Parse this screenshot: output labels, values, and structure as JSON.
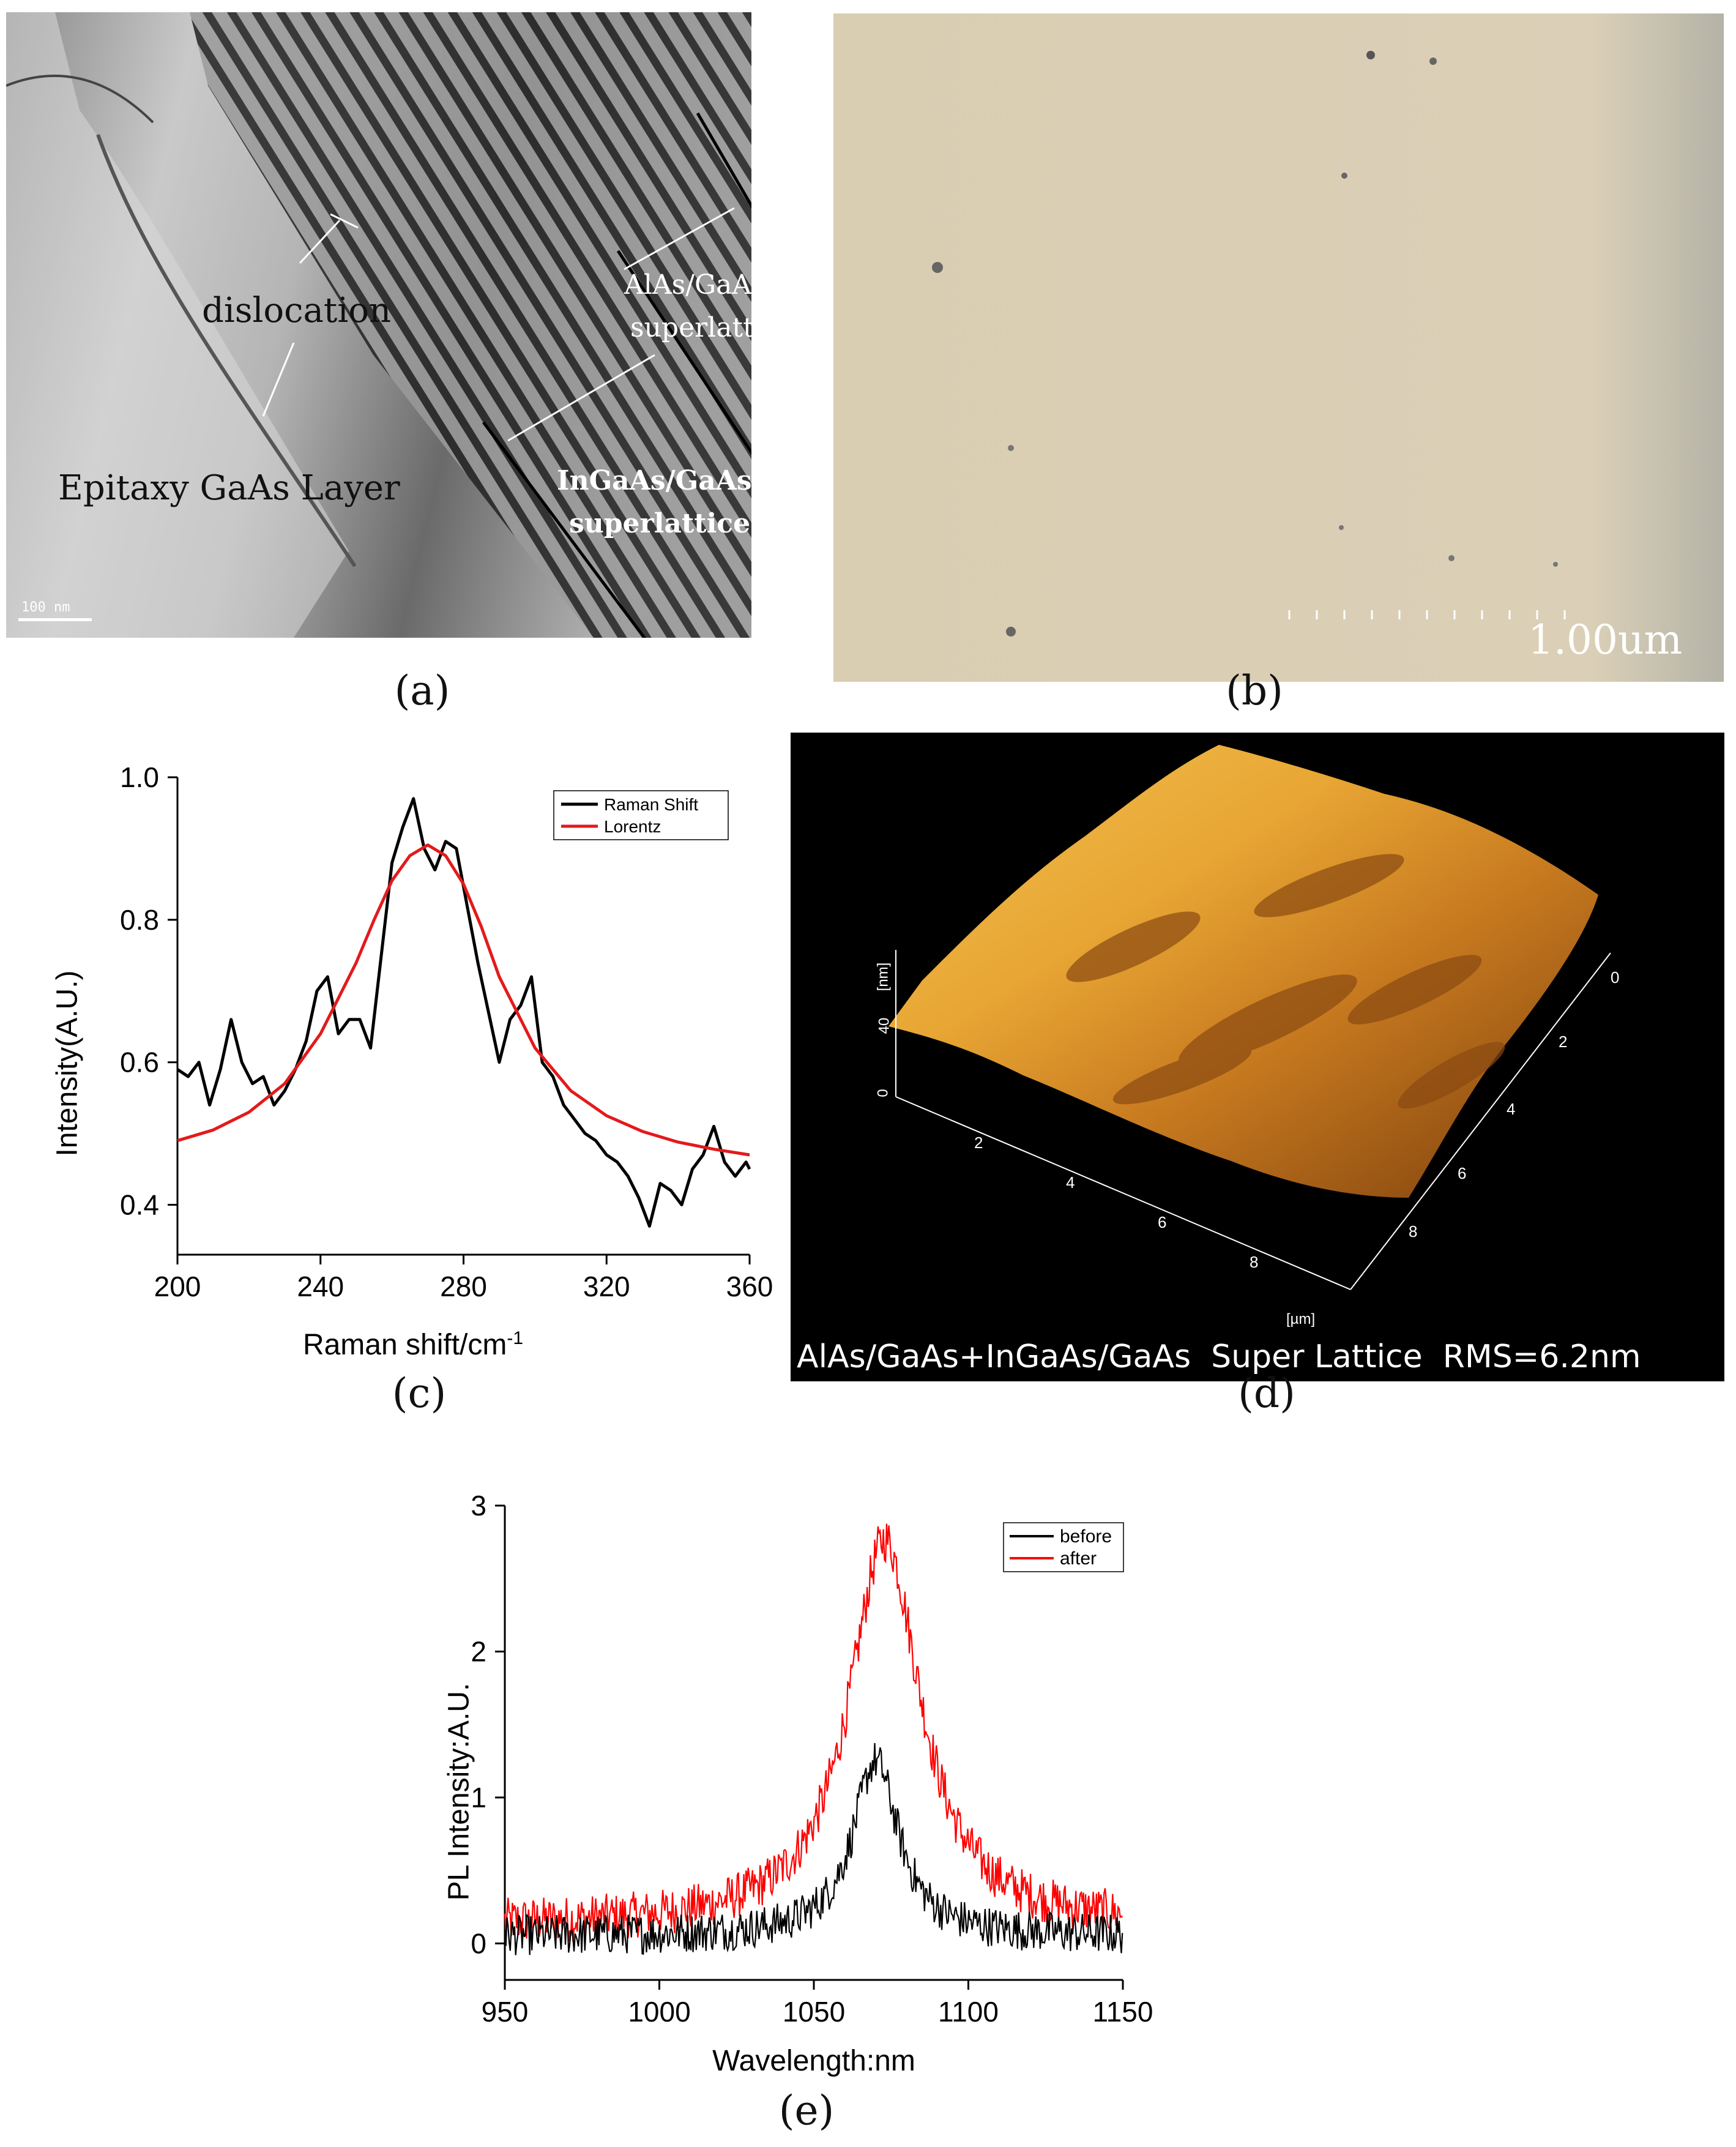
{
  "panel_labels": {
    "a": "(a)",
    "b": "(b)",
    "c": "(c)",
    "d": "(d)",
    "e": "(e)"
  },
  "tem": {
    "dislocation": "dislocation",
    "alas_1": "AlAs/GaAs",
    "alas_2": "superlattice",
    "ingaas_1": "InGaAs/GaAs",
    "ingaas_2": "superlattice",
    "epitaxy": "Epitaxy GaAs Layer",
    "scale": "100 nm"
  },
  "optical": {
    "scale": "1.00um"
  },
  "afm": {
    "caption": "AlAs/GaAs+InGaAs/GaAs  Super Lattice  RMS=6.2nm",
    "z_unit": "[nm]",
    "xy_unit": "[µm]",
    "z_ticks": [
      "40",
      "0"
    ],
    "x_ticks": [
      "2",
      "4",
      "6",
      "8"
    ],
    "y_ticks": [
      "0",
      "2",
      "4",
      "6",
      "8"
    ]
  },
  "chart_data": [
    {
      "type": "line",
      "xlabel": "Raman shift/cm",
      "xlabel_sup": "-1",
      "ylabel": "Intensity(A.U.)",
      "xlim": [
        200,
        360
      ],
      "ylim": [
        0.33,
        1.0
      ],
      "xticks": [
        "200",
        "240",
        "280",
        "320",
        "360"
      ],
      "yticks": [
        "0.4",
        "0.6",
        "0.8",
        "1.0"
      ],
      "legend_position": "top-right",
      "series": [
        {
          "name": "Raman Shift",
          "color": "#000000",
          "x": [
            200,
            203,
            206,
            209,
            212,
            215,
            218,
            221,
            224,
            227,
            230,
            233,
            236,
            239,
            242,
            245,
            248,
            251,
            254,
            257,
            260,
            263,
            266,
            269,
            272,
            275,
            278,
            281,
            284,
            287,
            290,
            293,
            296,
            299,
            302,
            305,
            308,
            311,
            314,
            317,
            320,
            323,
            326,
            329,
            332,
            335,
            338,
            341,
            344,
            347,
            350,
            353,
            356,
            359,
            360
          ],
          "y": [
            0.59,
            0.58,
            0.6,
            0.54,
            0.59,
            0.66,
            0.6,
            0.57,
            0.58,
            0.54,
            0.56,
            0.59,
            0.63,
            0.7,
            0.72,
            0.64,
            0.66,
            0.66,
            0.62,
            0.75,
            0.88,
            0.93,
            0.97,
            0.9,
            0.87,
            0.91,
            0.9,
            0.82,
            0.74,
            0.67,
            0.6,
            0.66,
            0.68,
            0.72,
            0.6,
            0.58,
            0.54,
            0.52,
            0.5,
            0.49,
            0.47,
            0.46,
            0.44,
            0.41,
            0.37,
            0.43,
            0.42,
            0.4,
            0.45,
            0.47,
            0.51,
            0.46,
            0.44,
            0.46,
            0.45
          ]
        },
        {
          "name": "Lorentz",
          "color": "#e31a1c",
          "x": [
            200,
            210,
            220,
            230,
            240,
            250,
            255,
            260,
            265,
            270,
            275,
            280,
            285,
            290,
            300,
            310,
            320,
            330,
            340,
            350,
            360
          ],
          "y": [
            0.49,
            0.505,
            0.53,
            0.57,
            0.64,
            0.74,
            0.8,
            0.855,
            0.89,
            0.905,
            0.89,
            0.85,
            0.79,
            0.72,
            0.62,
            0.56,
            0.525,
            0.503,
            0.488,
            0.478,
            0.47
          ]
        }
      ]
    },
    {
      "type": "line",
      "xlabel": "Wavelength:nm",
      "ylabel": "PL Intensity:A.U.",
      "xlim": [
        950,
        1150
      ],
      "ylim": [
        -0.25,
        3
      ],
      "xticks": [
        "950",
        "1000",
        "1050",
        "1100",
        "1150"
      ],
      "yticks": [
        "0",
        "1",
        "2",
        "3"
      ],
      "legend_position": "top-right",
      "series": [
        {
          "name": "before",
          "color": "#000000",
          "peak_x": 1070,
          "peak_y": 1.2,
          "baseline": 0.05
        },
        {
          "name": "after",
          "color": "#ff0000",
          "peak_x": 1073,
          "peak_y": 2.65,
          "baseline": 0.12
        }
      ]
    }
  ]
}
